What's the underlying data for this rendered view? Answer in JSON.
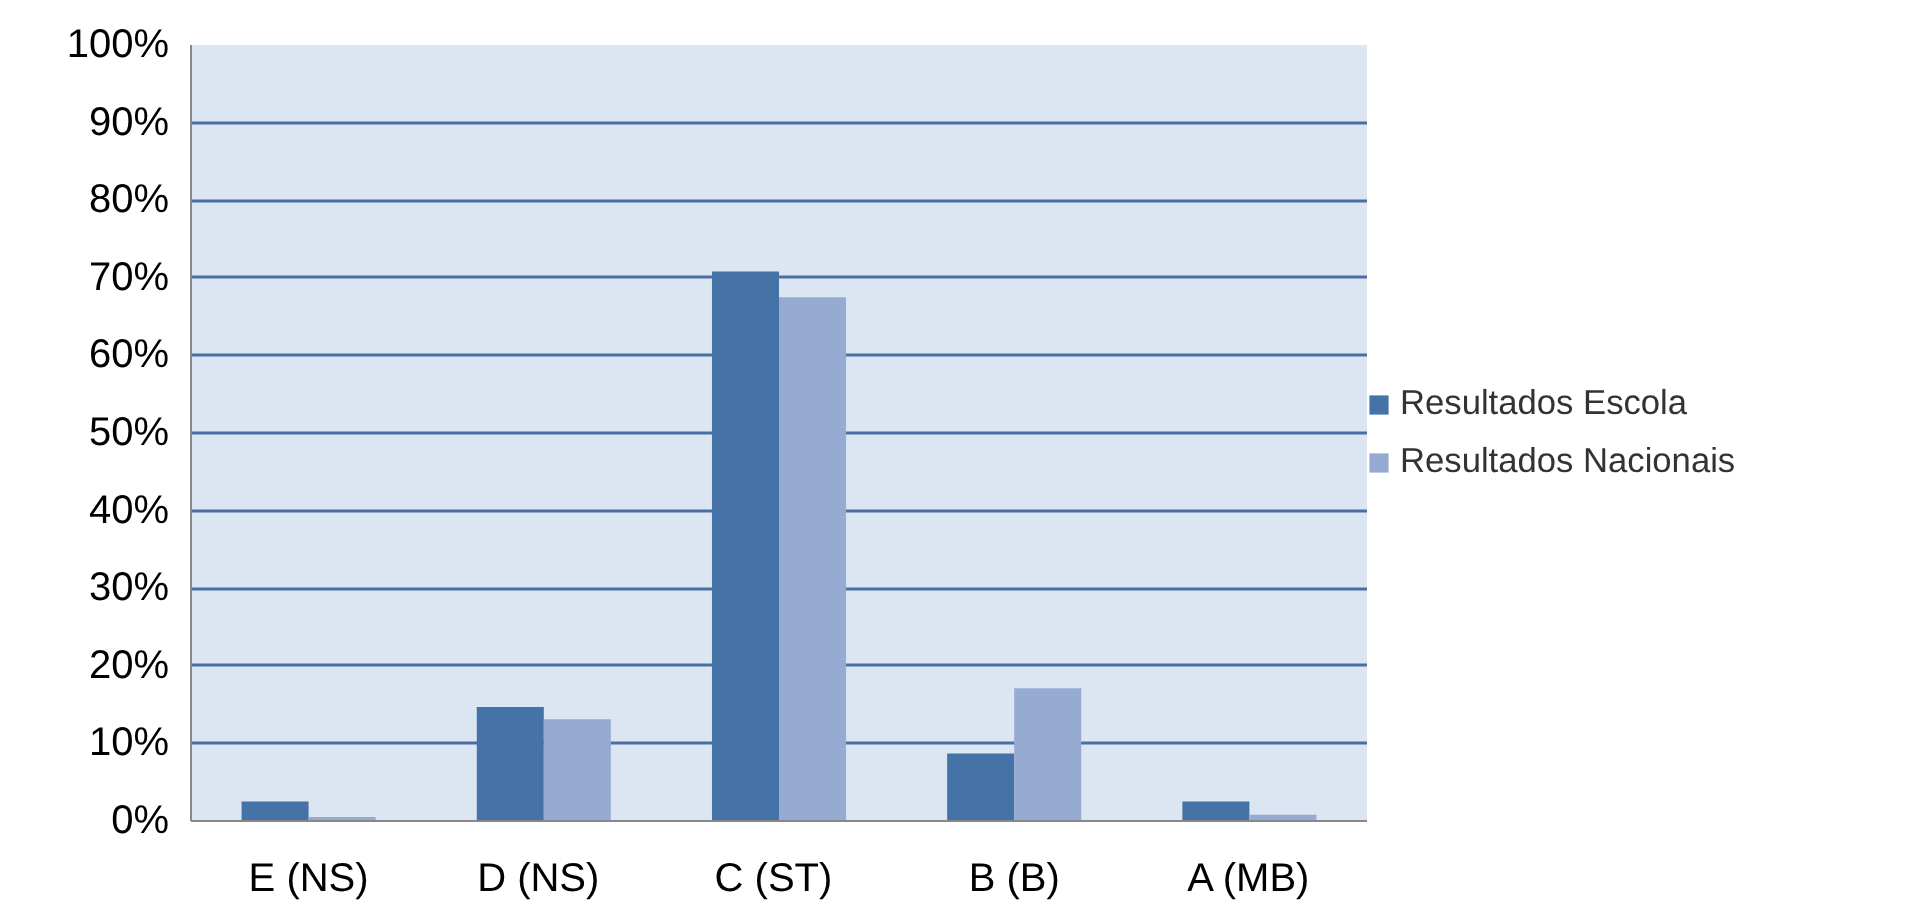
{
  "chart_data": {
    "type": "bar",
    "categories": [
      "E (NS)",
      "D  (NS)",
      "C  (ST)",
      "B (B)",
      "A (MB)"
    ],
    "series": [
      {
        "name": "Resultados Escola",
        "color": "#4573a7",
        "values": [
          2.5,
          14.7,
          70.8,
          8.7,
          2.5
        ]
      },
      {
        "name": "Resultados Nacionais",
        "color": "#95abd2",
        "values": [
          0.5,
          13.1,
          67.5,
          17.1,
          0.8
        ]
      }
    ],
    "ylim": [
      0,
      100
    ],
    "yticks": [
      {
        "value": 0,
        "label": "0%"
      },
      {
        "value": 10,
        "label": "10%"
      },
      {
        "value": 20,
        "label": "20%"
      },
      {
        "value": 30,
        "label": "30%"
      },
      {
        "value": 40,
        "label": "40%"
      },
      {
        "value": 50,
        "label": "50%"
      },
      {
        "value": 60,
        "label": "60%"
      },
      {
        "value": 70,
        "label": "70%"
      },
      {
        "value": 80,
        "label": "80%"
      },
      {
        "value": 90,
        "label": "90%"
      },
      {
        "value": 100,
        "label": "100%"
      }
    ],
    "grid": "y",
    "legend": "right"
  }
}
